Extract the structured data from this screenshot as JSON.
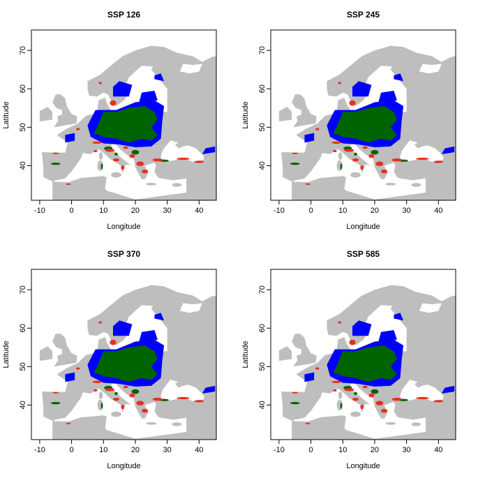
{
  "chart_data": [
    {
      "type": "map",
      "title": "SSP 126",
      "xlabel": "Longitude",
      "ylabel": "Latitude",
      "xlim": [
        -12.6,
        45.4
      ],
      "ylim": [
        31,
        75.3
      ],
      "xticks": [
        -10,
        0,
        10,
        20,
        30,
        40
      ],
      "yticks": [
        40,
        50,
        60,
        70
      ]
    },
    {
      "type": "map",
      "title": "SSP 245",
      "xlabel": "Longitude",
      "ylabel": "Latitude",
      "xlim": [
        -12.6,
        45.4
      ],
      "ylim": [
        31,
        75.3
      ],
      "xticks": [
        -10,
        0,
        10,
        20,
        30,
        40
      ],
      "yticks": [
        40,
        50,
        60,
        70
      ]
    },
    {
      "type": "map",
      "title": "SSP 370",
      "xlabel": "Longitude",
      "ylabel": "Latitude",
      "xlim": [
        -12.6,
        45.4
      ],
      "ylim": [
        31,
        75.3
      ],
      "xticks": [
        -10,
        0,
        10,
        20,
        30,
        40
      ],
      "yticks": [
        40,
        50,
        60,
        70
      ]
    },
    {
      "type": "map",
      "title": "SSP 585",
      "xlabel": "Longitude",
      "ylabel": "Latitude",
      "xlim": [
        -12.6,
        45.4
      ],
      "ylim": [
        31,
        75.3
      ],
      "xticks": [
        -10,
        0,
        10,
        20,
        30,
        40
      ],
      "yticks": [
        40,
        50,
        60,
        70
      ]
    }
  ]
}
